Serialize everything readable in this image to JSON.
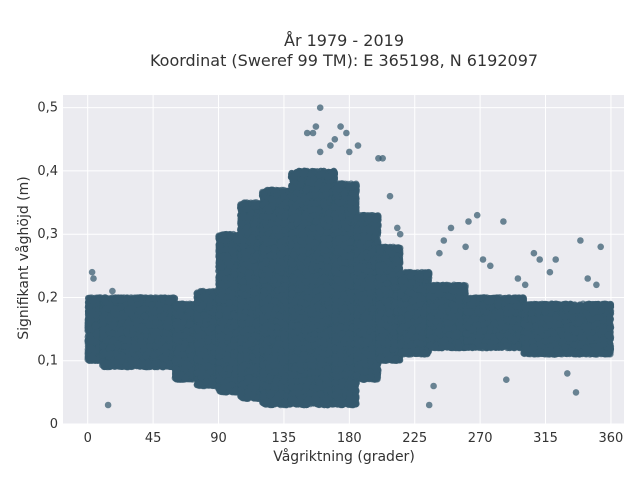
{
  "chart_data": {
    "type": "scatter",
    "title_lines": [
      "År 1979 - 2019",
      "Koordinat (Sweref 99 TM): E 365198, N 6192097"
    ],
    "xlabel": "Vågriktning (grader)",
    "ylabel": "Signifikant våghöjd (m)",
    "xlim": [
      -17,
      369
    ],
    "ylim": [
      0,
      0.52
    ],
    "x_ticks": [
      0,
      45,
      90,
      135,
      180,
      225,
      270,
      315,
      360
    ],
    "x_tick_labels": [
      "0",
      "45",
      "90",
      "135",
      "180",
      "225",
      "270",
      "315",
      "360"
    ],
    "y_ticks": [
      0,
      0.1,
      0.2,
      0.3,
      0.4,
      0.5
    ],
    "y_tick_labels": [
      "0",
      "0,1",
      "0,2",
      "0,3",
      "0,4",
      "0,5"
    ],
    "grid": true,
    "colors": {
      "marker": "#34596e",
      "plot_bg": "#ebebf0",
      "grid": "#ffffff"
    },
    "density_bands": [
      {
        "x_range": [
          0,
          10
        ],
        "y_range": [
          0.1,
          0.2
        ]
      },
      {
        "x_range": [
          10,
          60
        ],
        "y_range": [
          0.09,
          0.2
        ]
      },
      {
        "x_range": [
          60,
          75
        ],
        "y_range": [
          0.07,
          0.19
        ]
      },
      {
        "x_range": [
          75,
          90
        ],
        "y_range": [
          0.06,
          0.21
        ]
      },
      {
        "x_range": [
          90,
          105
        ],
        "y_range": [
          0.05,
          0.3
        ]
      },
      {
        "x_range": [
          105,
          120
        ],
        "y_range": [
          0.04,
          0.35
        ]
      },
      {
        "x_range": [
          120,
          140
        ],
        "y_range": [
          0.03,
          0.37
        ]
      },
      {
        "x_range": [
          140,
          170
        ],
        "y_range": [
          0.03,
          0.4
        ]
      },
      {
        "x_range": [
          170,
          185
        ],
        "y_range": [
          0.03,
          0.38
        ]
      },
      {
        "x_range": [
          185,
          200
        ],
        "y_range": [
          0.07,
          0.33
        ]
      },
      {
        "x_range": [
          200,
          215
        ],
        "y_range": [
          0.1,
          0.28
        ]
      },
      {
        "x_range": [
          215,
          235
        ],
        "y_range": [
          0.11,
          0.24
        ]
      },
      {
        "x_range": [
          235,
          260
        ],
        "y_range": [
          0.12,
          0.22
        ]
      },
      {
        "x_range": [
          260,
          300
        ],
        "y_range": [
          0.12,
          0.2
        ]
      },
      {
        "x_range": [
          300,
          360
        ],
        "y_range": [
          0.11,
          0.19
        ]
      }
    ],
    "outliers": [
      [
        3,
        0.24
      ],
      [
        4,
        0.23
      ],
      [
        14,
        0.03
      ],
      [
        17,
        0.21
      ],
      [
        21,
        0.2
      ],
      [
        98,
        0.3
      ],
      [
        103,
        0.29
      ],
      [
        107,
        0.33
      ],
      [
        110,
        0.34
      ],
      [
        151,
        0.46
      ],
      [
        155,
        0.46
      ],
      [
        157,
        0.47
      ],
      [
        160,
        0.5
      ],
      [
        170,
        0.45
      ],
      [
        174,
        0.47
      ],
      [
        178,
        0.46
      ],
      [
        160,
        0.43
      ],
      [
        167,
        0.44
      ],
      [
        180,
        0.43
      ],
      [
        186,
        0.44
      ],
      [
        200,
        0.42
      ],
      [
        203,
        0.42
      ],
      [
        208,
        0.36
      ],
      [
        213,
        0.31
      ],
      [
        215,
        0.3
      ],
      [
        235,
        0.03
      ],
      [
        238,
        0.06
      ],
      [
        242,
        0.27
      ],
      [
        245,
        0.29
      ],
      [
        250,
        0.31
      ],
      [
        260,
        0.28
      ],
      [
        262,
        0.32
      ],
      [
        268,
        0.33
      ],
      [
        272,
        0.26
      ],
      [
        277,
        0.25
      ],
      [
        286,
        0.32
      ],
      [
        283,
        0.2
      ],
      [
        288,
        0.07
      ],
      [
        296,
        0.23
      ],
      [
        301,
        0.22
      ],
      [
        307,
        0.27
      ],
      [
        311,
        0.26
      ],
      [
        318,
        0.24
      ],
      [
        322,
        0.26
      ],
      [
        330,
        0.08
      ],
      [
        336,
        0.05
      ],
      [
        339,
        0.29
      ],
      [
        344,
        0.23
      ],
      [
        350,
        0.22
      ],
      [
        353,
        0.28
      ],
      [
        356,
        0.19
      ],
      [
        359,
        0.12
      ]
    ]
  }
}
